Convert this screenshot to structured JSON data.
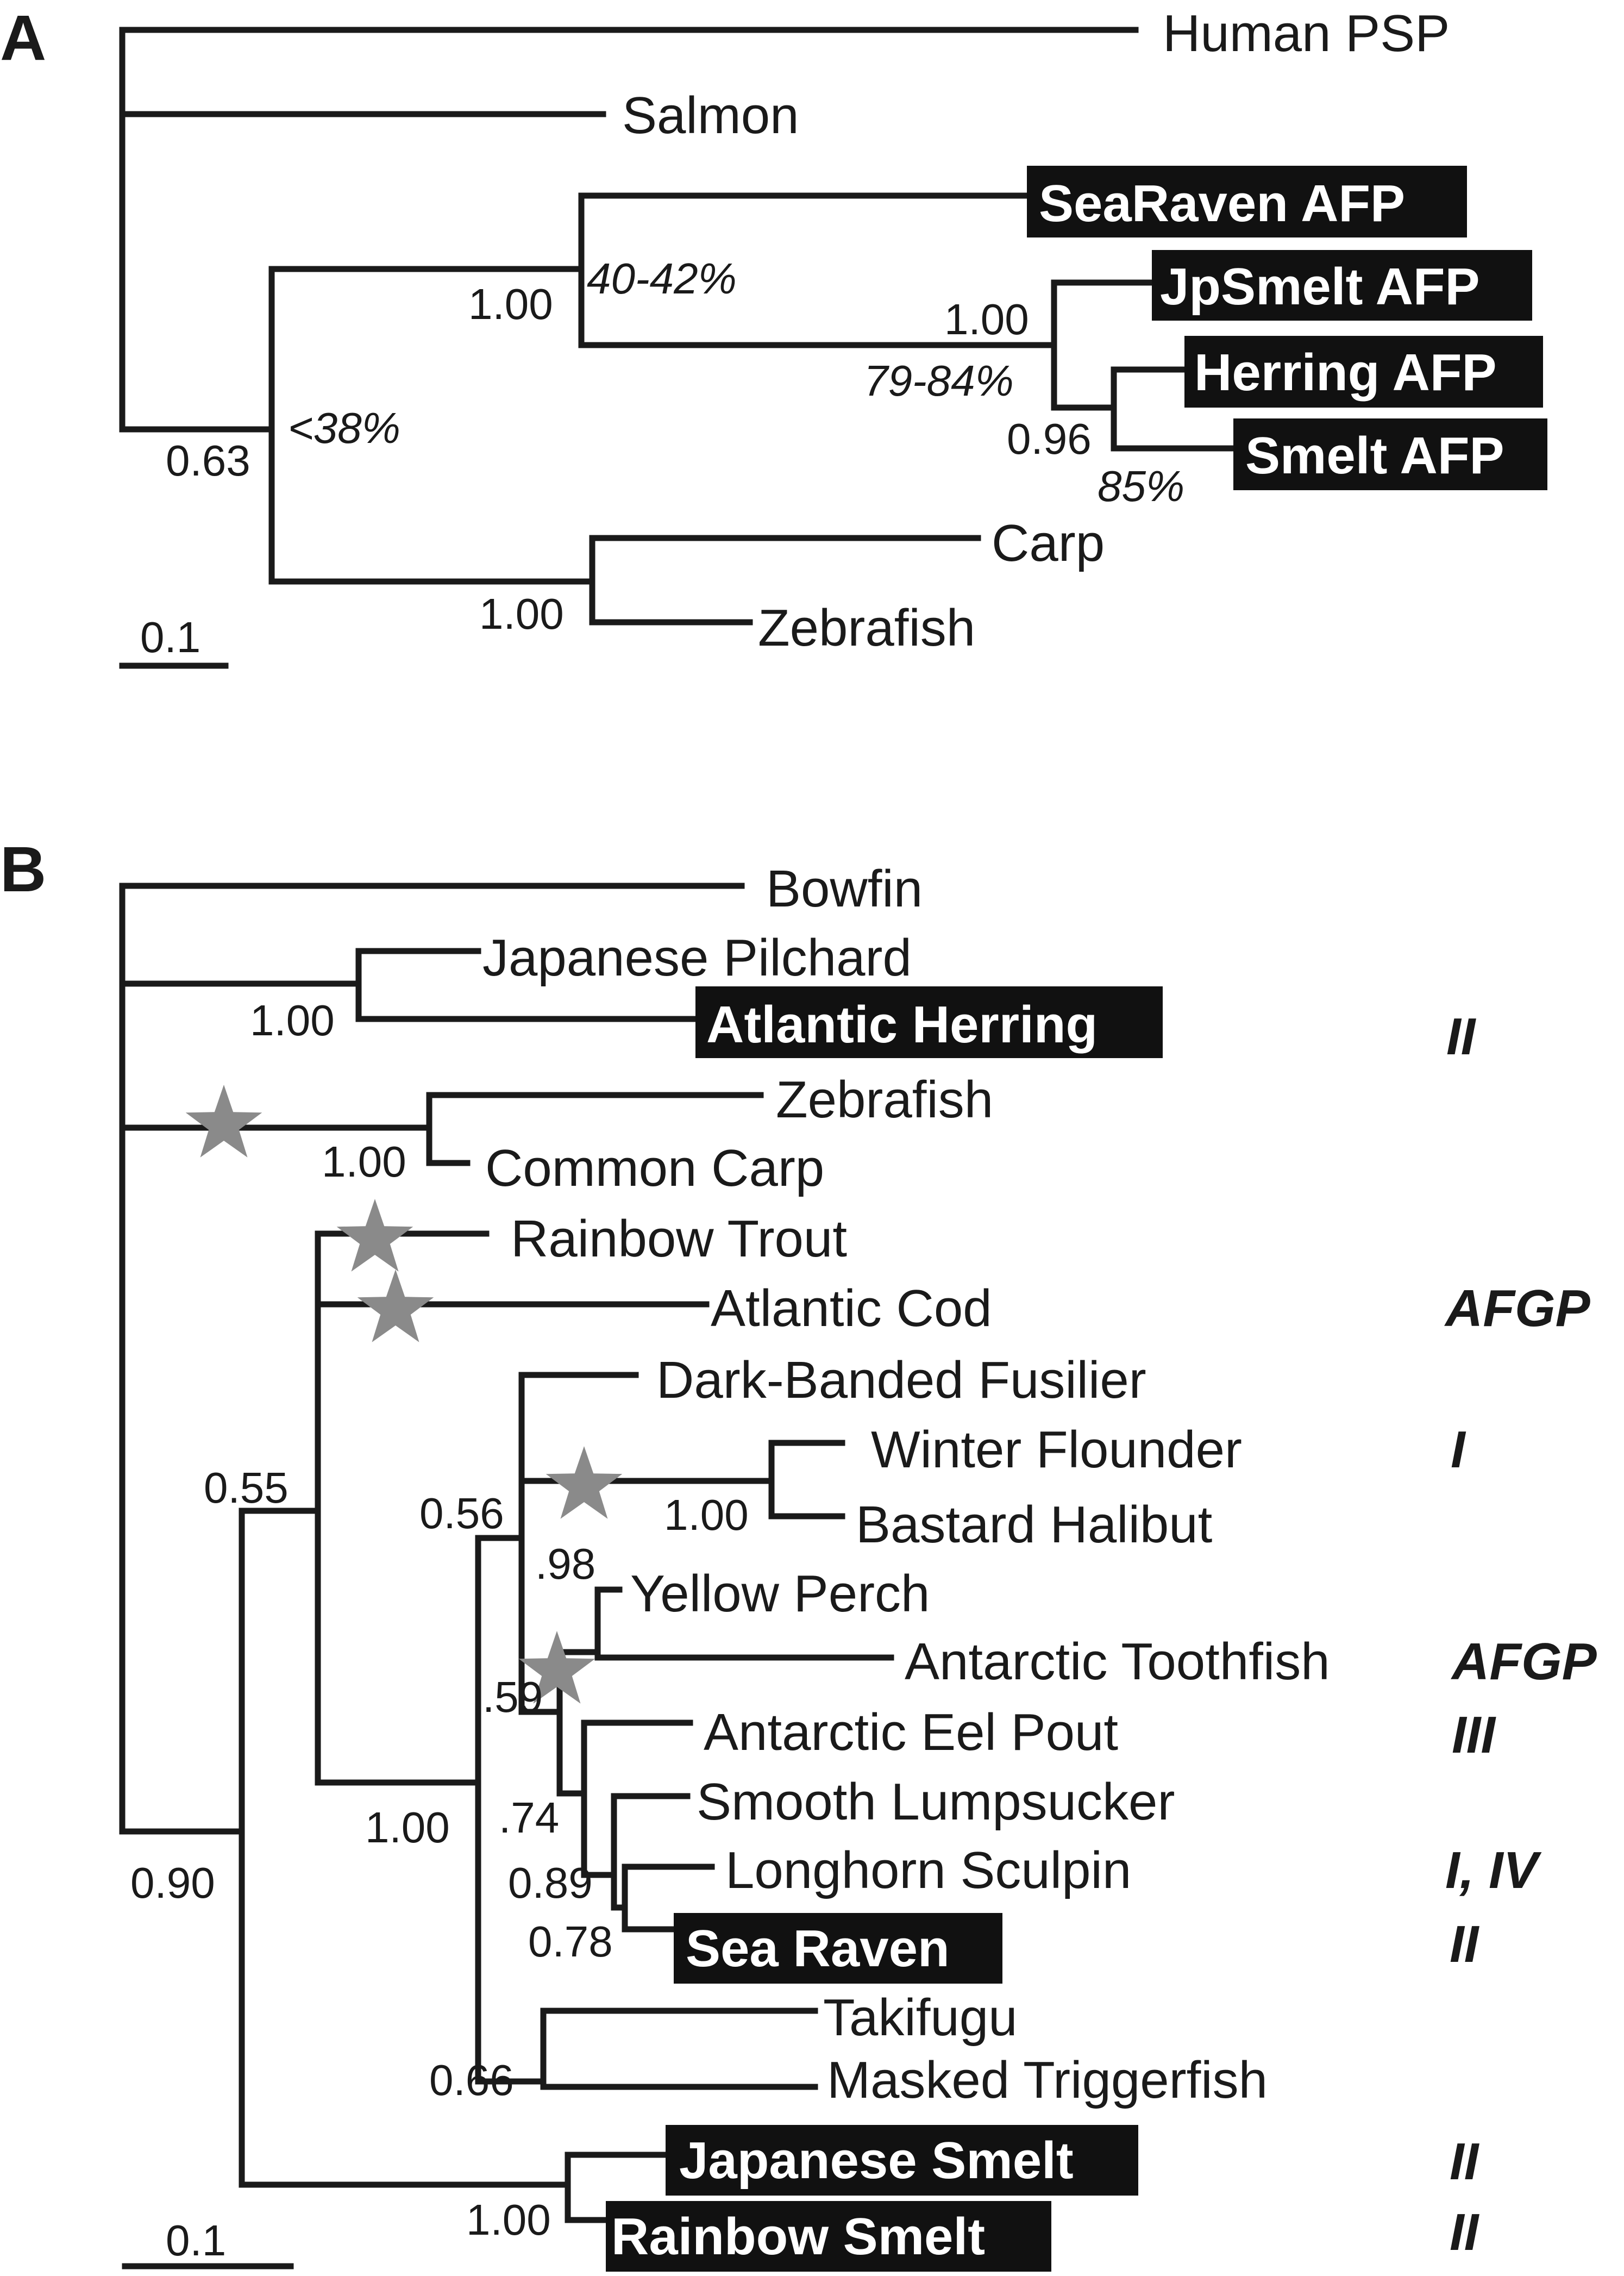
{
  "panel_a": {
    "label": "A",
    "scale_bar": "0.1",
    "leaves": {
      "human_psp": "Human PSP",
      "salmon": "Salmon",
      "searaven_afp": "SeaRaven AFP",
      "jpsmelt_afp": "JpSmelt AFP",
      "herring_afp": "Herring AFP",
      "smelt_afp": "Smelt AFP",
      "carp": "Carp",
      "zebrafish": "Zebrafish"
    },
    "support": {
      "afp_clade": "1.00",
      "jpsmelt_herring_smelt": "1.00",
      "herring_smelt": "0.96",
      "lower_clade": "0.63",
      "carp_zebrafish": "1.00"
    },
    "identity": {
      "afp_clade": "40-42%",
      "jpsmelt_herring_smelt": "79-84%",
      "herring_smelt": "85%",
      "lower_clade": "<38%"
    }
  },
  "panel_b": {
    "label": "B",
    "scale_bar": "0.1",
    "leaves": {
      "bowfin": "Bowfin",
      "japanese_pilchard": "Japanese Pilchard",
      "atlantic_herring": "Atlantic Herring",
      "zebrafish": "Zebrafish",
      "common_carp": "Common Carp",
      "rainbow_trout": "Rainbow Trout",
      "atlantic_cod": "Atlantic Cod",
      "dark_banded_fusilier": "Dark-Banded Fusilier",
      "winter_flounder": "Winter Flounder",
      "bastard_halibut": "Bastard Halibut",
      "yellow_perch": "Yellow Perch",
      "antarctic_toothfish": "Antarctic Toothfish",
      "antarctic_eel_pout": "Antarctic Eel Pout",
      "smooth_lumpsucker": "Smooth Lumpsucker",
      "longhorn_sculpin": "Longhorn Sculpin",
      "sea_raven": "Sea Raven",
      "takifugu": "Takifugu",
      "masked_triggerfish": "Masked Triggerfish",
      "japanese_smelt": "Japanese Smelt",
      "rainbow_smelt": "Rainbow Smelt"
    },
    "support": {
      "pilchard_herring": "1.00",
      "zebrafish_carp": "1.00",
      "trout_cod_clade": "0.55",
      "percomorph_clade": "0.56",
      "flounder_halibut": "1.00",
      "perch_toothfish": ".98",
      "perch_eelpout_clade": ".59",
      "eelpout_clade": ".74",
      "lumpsucker_clade": "0.89",
      "sculpin_raven": "0.78",
      "takifugu_triggerfish": "0.66",
      "acanthomorph_clade": "1.00",
      "root_lower": "0.90",
      "smelts": "1.00"
    },
    "afp_types": {
      "atlantic_herring": "II",
      "atlantic_cod": "AFGP",
      "winter_flounder": "I",
      "antarctic_toothfish": "AFGP",
      "antarctic_eel_pout": "III",
      "longhorn_sculpin": "I, IV",
      "sea_raven": "II",
      "japanese_smelt": "II",
      "rainbow_smelt": "II"
    }
  },
  "colors": {
    "branch": "#1a1a1a",
    "highlight_box": "#111111",
    "star": "#8a8a8a"
  }
}
